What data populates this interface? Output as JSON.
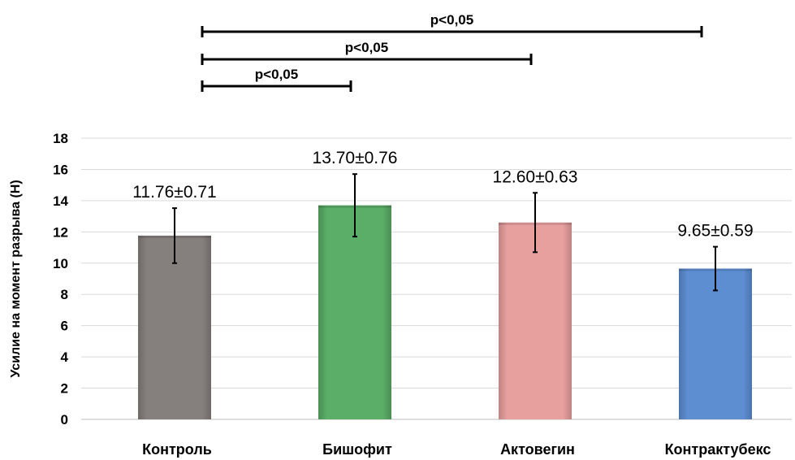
{
  "chart_data": {
    "type": "bar",
    "title": "",
    "xlabel": "",
    "ylabel": "Усилие  на момент разрыва (Н)",
    "ylim": [
      0,
      18
    ],
    "yticks": [
      0,
      2,
      4,
      6,
      8,
      10,
      12,
      14,
      16,
      18
    ],
    "grid": true,
    "categories": [
      "Контроль",
      "Бишофит",
      "Актовегин",
      "Контрактубекс"
    ],
    "values": [
      11.76,
      13.7,
      12.6,
      9.65
    ],
    "errors": [
      1.76,
      2.0,
      1.9,
      1.4
    ],
    "data_labels": [
      "11.76±0.71",
      "13.70±0.76",
      "12.60±0.63",
      "9.65±0.59"
    ],
    "colors": [
      "#857f7d",
      "#5aae67",
      "#e8a09f",
      "#5d8ed2"
    ],
    "significance": [
      {
        "from": "Контроль",
        "to": "Бишофит",
        "label": "p<0,05"
      },
      {
        "from": "Контроль",
        "to": "Актовегин",
        "label": "p<0,05"
      },
      {
        "from": "Контроль",
        "to": "Контрактубекс",
        "label": "p<0,05"
      }
    ]
  }
}
